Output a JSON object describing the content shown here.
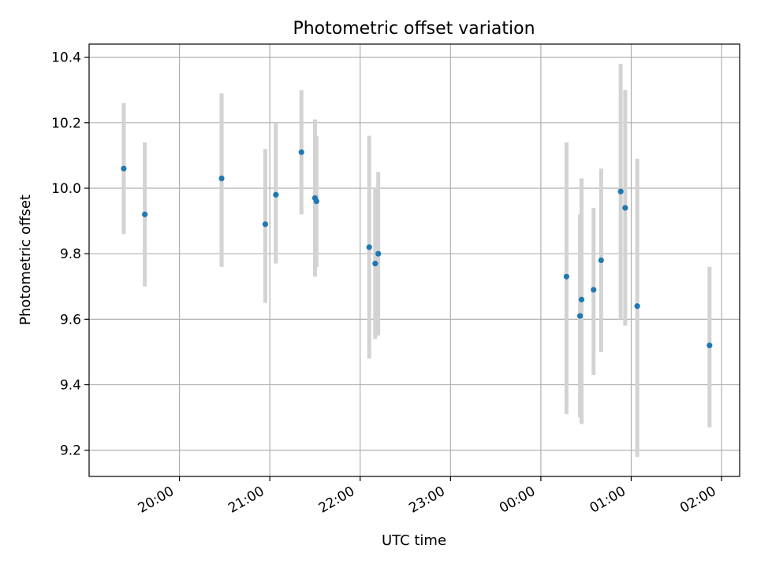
{
  "chart_data": {
    "type": "scatter",
    "title": "Photometric offset variation",
    "xlabel": "UTC time",
    "ylabel": "Photometric offset",
    "grid": true,
    "legend": "none",
    "xlim": [
      "19:00",
      "02:12"
    ],
    "ylim": [
      9.12,
      10.44
    ],
    "x_ticks": [
      "20:00",
      "21:00",
      "22:00",
      "23:00",
      "00:00",
      "01:00",
      "02:00"
    ],
    "y_ticks": [
      "9.2",
      "9.4",
      "9.6",
      "9.8",
      "10.0",
      "10.2",
      "10.4"
    ],
    "colors": {
      "point": "#1f77b4",
      "error_bar": "#d3d3d3",
      "grid": "#b0b0b0"
    },
    "points": [
      {
        "time": "19:23",
        "y": 10.06,
        "ylow": 9.86,
        "yhigh": 10.26
      },
      {
        "time": "19:37",
        "y": 9.92,
        "ylow": 9.7,
        "yhigh": 10.14
      },
      {
        "time": "20:28",
        "y": 10.03,
        "ylow": 9.76,
        "yhigh": 10.29
      },
      {
        "time": "20:57",
        "y": 9.89,
        "ylow": 9.65,
        "yhigh": 10.12
      },
      {
        "time": "21:04",
        "y": 9.98,
        "ylow": 9.77,
        "yhigh": 10.2
      },
      {
        "time": "21:21",
        "y": 10.11,
        "ylow": 9.92,
        "yhigh": 10.3
      },
      {
        "time": "21:30",
        "y": 9.97,
        "ylow": 9.73,
        "yhigh": 10.21
      },
      {
        "time": "21:31",
        "y": 9.96,
        "ylow": 9.76,
        "yhigh": 10.16
      },
      {
        "time": "22:06",
        "y": 9.82,
        "ylow": 9.48,
        "yhigh": 10.16
      },
      {
        "time": "22:10",
        "y": 9.77,
        "ylow": 9.54,
        "yhigh": 10.0
      },
      {
        "time": "22:12",
        "y": 9.8,
        "ylow": 9.55,
        "yhigh": 10.05
      },
      {
        "time": "00:17",
        "y": 9.73,
        "ylow": 9.31,
        "yhigh": 10.14
      },
      {
        "time": "00:26",
        "y": 9.61,
        "ylow": 9.3,
        "yhigh": 9.92
      },
      {
        "time": "00:27",
        "y": 9.66,
        "ylow": 9.28,
        "yhigh": 10.03
      },
      {
        "time": "00:35",
        "y": 9.69,
        "ylow": 9.43,
        "yhigh": 9.94
      },
      {
        "time": "00:40",
        "y": 9.78,
        "ylow": 9.5,
        "yhigh": 10.06
      },
      {
        "time": "00:53",
        "y": 9.99,
        "ylow": 9.6,
        "yhigh": 10.38
      },
      {
        "time": "00:56",
        "y": 9.94,
        "ylow": 9.58,
        "yhigh": 10.3
      },
      {
        "time": "01:04",
        "y": 9.64,
        "ylow": 9.18,
        "yhigh": 10.09
      },
      {
        "time": "01:52",
        "y": 9.52,
        "ylow": 9.27,
        "yhigh": 9.76
      }
    ]
  }
}
